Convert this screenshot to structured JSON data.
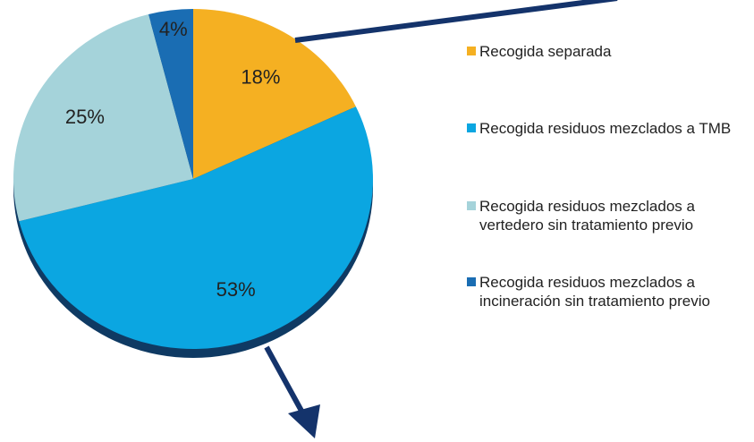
{
  "chart_data": {
    "type": "pie",
    "categories": [
      "Recogida separada",
      "Recogida residuos mezclados a TMB",
      "Recogida residuos mezclados a vertedero sin tratamiento previo",
      "Recogida residuos mezclados a incineración sin tratamiento previo"
    ],
    "values": [
      18,
      53,
      25,
      4
    ],
    "value_labels": [
      "18%",
      "53%",
      "25%",
      "4%"
    ],
    "colors": [
      "#f5b022",
      "#0ba6e1",
      "#a5d3da",
      "#1a6db3"
    ]
  }
}
